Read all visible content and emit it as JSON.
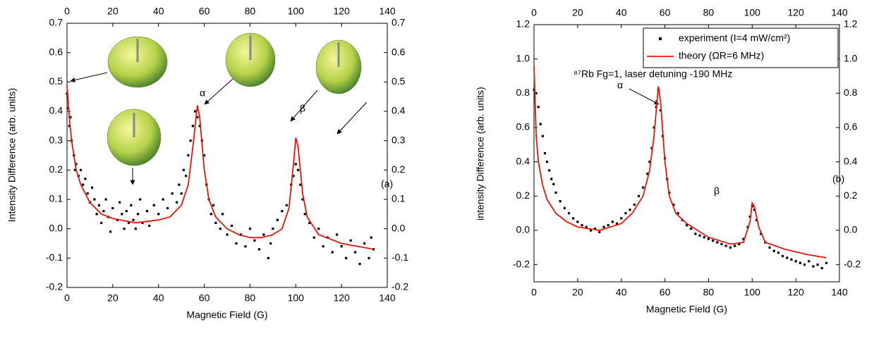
{
  "chart_data": [
    {
      "type": "scatter",
      "xlabel": "Magnetic Field (G)",
      "ylabel": "Intensity Difference (arb. units)",
      "xlim": [
        0,
        140
      ],
      "xticks": [
        0,
        20,
        40,
        60,
        80,
        100,
        120,
        140
      ],
      "ylim": [
        -0.2,
        0.7
      ],
      "yticks": [
        -0.2,
        -0.1,
        {
          "value": 0,
          "label": "0.0"
        },
        0.1,
        0.2,
        0.3,
        0.4,
        0.5,
        0.6,
        0.7
      ],
      "annotations": [
        "α",
        "β",
        "(a)"
      ],
      "series": [
        {
          "mode": "markers",
          "color": "#000000",
          "x": [
            0,
            0.5,
            1,
            1.5,
            2,
            3,
            3.5,
            4,
            5,
            6,
            7,
            8,
            9,
            10,
            11,
            12,
            13,
            14,
            15,
            16,
            17,
            18,
            19,
            20,
            22,
            23,
            24,
            25,
            26,
            27,
            28,
            29,
            30,
            31,
            32,
            33,
            35,
            36,
            38,
            40,
            42,
            44,
            46,
            48,
            49,
            50,
            51,
            52,
            53,
            54,
            55,
            56,
            57,
            58,
            59,
            60,
            61,
            62,
            63,
            64,
            65,
            67,
            68,
            70,
            72,
            74,
            76,
            78,
            80,
            82,
            84,
            86,
            88,
            89,
            90,
            92,
            94,
            96,
            98,
            99,
            100,
            101,
            102,
            103,
            104,
            106,
            108,
            110,
            112,
            114,
            116,
            118,
            120,
            122,
            124,
            126,
            128,
            130,
            132,
            133,
            134
          ],
          "values": [
            0.46,
            0.41,
            0.35,
            0.38,
            0.3,
            0.25,
            0.2,
            0.22,
            0.18,
            0.2,
            0.15,
            0.17,
            0.12,
            0.09,
            0.14,
            0.1,
            0.05,
            0.08,
            0.02,
            0.06,
            0.1,
            0.04,
            -0.01,
            0.07,
            0.03,
            0.09,
            0.05,
            0,
            0.06,
            0.02,
            0.08,
            0.03,
            0,
            0.05,
            0.1,
            0.02,
            0.06,
            0.01,
            0.08,
            0.05,
            0.1,
            0.07,
            0.12,
            0.09,
            0.15,
            0.12,
            0.2,
            0.18,
            0.25,
            0.3,
            0.35,
            0.4,
            0.38,
            0.35,
            0.3,
            0.25,
            0.15,
            0.1,
            0.05,
            0.08,
            0.02,
            0,
            0.05,
            -0.02,
            0.01,
            -0.05,
            -0.02,
            -0.06,
            0,
            -0.04,
            -0.07,
            -0.02,
            -0.1,
            -0.05,
            0,
            0.03,
            0.06,
            0.08,
            0.15,
            0.18,
            0.22,
            0.2,
            0.15,
            0.1,
            0.05,
            0.02,
            -0.03,
            0,
            -0.06,
            -0.03,
            -0.08,
            -0.02,
            -0.06,
            -0.1,
            -0.04,
            -0.08,
            -0.12,
            -0.05,
            -0.1,
            -0.03,
            -0.07
          ]
        },
        {
          "mode": "line",
          "color": "#e8140c",
          "x": [
            0,
            1,
            2,
            4,
            6,
            8,
            10,
            15,
            20,
            30,
            40,
            45,
            50,
            53,
            55,
            57,
            58,
            60,
            62,
            65,
            70,
            75,
            80,
            85,
            90,
            94,
            97,
            99,
            100,
            101,
            103,
            105,
            110,
            120,
            134
          ],
          "values": [
            0.49,
            0.38,
            0.3,
            0.2,
            0.15,
            0.12,
            0.09,
            0.05,
            0.035,
            0.02,
            0.03,
            0.04,
            0.08,
            0.15,
            0.28,
            0.42,
            0.38,
            0.2,
            0.1,
            0.04,
            0,
            -0.02,
            -0.03,
            -0.03,
            -0.02,
            0,
            0.07,
            0.22,
            0.31,
            0.28,
            0.12,
            0.04,
            -0.02,
            -0.05,
            -0.07
          ]
        }
      ]
    },
    {
      "type": "scatter",
      "xlabel": "Magnetic Field (G)",
      "ylabel": "intensity Difference (arb. units)",
      "xlim": [
        0,
        140
      ],
      "xticks": [
        0,
        20,
        40,
        60,
        80,
        100,
        120,
        140
      ],
      "ylim": [
        -0.3,
        1.2
      ],
      "yticks": [
        -0.2,
        {
          "value": 0,
          "label": "0.0"
        },
        0.2,
        0.4,
        0.6,
        0.8,
        {
          "value": 1,
          "label": "1.0"
        },
        1.2
      ],
      "annotations": [
        "α",
        "β",
        "(b)",
        "⁸⁷Rb Fg=1, laser detuning -190 MHz"
      ],
      "legend": "upper right",
      "series": [
        {
          "name": "experiment (I=4 mW/cm²)",
          "mode": "markers",
          "color": "#000000",
          "x": [
            0,
            1,
            2,
            3,
            4,
            5,
            6,
            7,
            8,
            9,
            10,
            12,
            14,
            16,
            18,
            20,
            22,
            24,
            26,
            28,
            30,
            32,
            34,
            36,
            38,
            40,
            42,
            44,
            46,
            48,
            50,
            52,
            53,
            54,
            55,
            56,
            57,
            58,
            59,
            60,
            61,
            62,
            64,
            66,
            68,
            70,
            72,
            74,
            76,
            78,
            80,
            82,
            84,
            86,
            88,
            90,
            92,
            94,
            96,
            98,
            99,
            100,
            101,
            102,
            104,
            106,
            108,
            110,
            112,
            114,
            116,
            118,
            120,
            122,
            124,
            126,
            128,
            130,
            132,
            134
          ],
          "values": [
            0.82,
            0.8,
            0.72,
            0.62,
            0.55,
            0.45,
            0.4,
            0.35,
            0.3,
            0.27,
            0.22,
            0.17,
            0.13,
            0.1,
            0.07,
            0.05,
            0.03,
            0.02,
            0,
            0.01,
            -0.01,
            0.02,
            0.03,
            0.05,
            0.04,
            0.07,
            0.1,
            0.12,
            0.15,
            0.2,
            0.25,
            0.33,
            0.4,
            0.48,
            0.6,
            0.72,
            0.82,
            0.7,
            0.55,
            0.42,
            0.3,
            0.22,
            0.15,
            0.1,
            0.06,
            0.03,
            0.01,
            -0.02,
            -0.03,
            -0.04,
            -0.05,
            -0.06,
            -0.07,
            -0.08,
            -0.09,
            -0.1,
            -0.09,
            -0.08,
            -0.05,
            0.02,
            0.08,
            0.14,
            0.12,
            0.06,
            -0.02,
            -0.07,
            -0.1,
            -0.12,
            -0.13,
            -0.15,
            -0.16,
            -0.17,
            -0.18,
            -0.19,
            -0.2,
            -0.18,
            -0.21,
            -0.2,
            -0.22,
            -0.19
          ]
        },
        {
          "name": "theory (ΩR=6 MHz)",
          "mode": "line",
          "color": "#e8140c",
          "x": [
            0,
            1,
            2,
            4,
            6,
            10,
            15,
            20,
            30,
            40,
            45,
            50,
            53,
            55,
            57,
            58,
            60,
            62,
            65,
            70,
            80,
            90,
            96,
            99,
            100,
            101,
            103,
            106,
            115,
            125,
            134
          ],
          "values": [
            0.96,
            0.55,
            0.4,
            0.26,
            0.18,
            0.1,
            0.05,
            0.02,
            0,
            0.04,
            0.1,
            0.2,
            0.35,
            0.55,
            0.84,
            0.75,
            0.4,
            0.2,
            0.1,
            0.04,
            -0.04,
            -0.08,
            -0.07,
            0.05,
            0.16,
            0.14,
            0.02,
            -0.07,
            -0.11,
            -0.14,
            -0.16
          ]
        }
      ]
    }
  ]
}
